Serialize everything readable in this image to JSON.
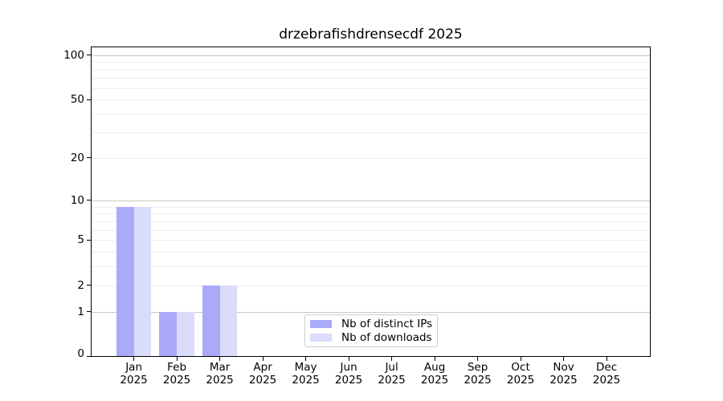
{
  "chart_data": {
    "type": "bar",
    "title": "drzebrafishdrensecdf 2025",
    "categories": [
      "Jan",
      "Feb",
      "Mar",
      "Apr",
      "May",
      "Jun",
      "Jul",
      "Aug",
      "Sep",
      "Oct",
      "Nov",
      "Dec"
    ],
    "year_label": "2025",
    "series": [
      {
        "name": "Nb of distinct IPs",
        "color": "#aaaaf8",
        "values": [
          9,
          1,
          2,
          0,
          0,
          0,
          0,
          0,
          0,
          0,
          0,
          0
        ]
      },
      {
        "name": "Nb of downloads",
        "color": "#dbdbfa",
        "values": [
          9,
          1,
          2,
          0,
          0,
          0,
          0,
          0,
          0,
          0,
          0,
          0
        ]
      }
    ],
    "y_ticks": [
      0,
      1,
      2,
      5,
      10,
      20,
      50,
      100
    ],
    "y_scale": "log10(1+v)",
    "ylim": [
      0,
      120
    ],
    "xlabel": "",
    "ylabel": "",
    "grid": {
      "major_values": [
        1,
        10,
        100
      ],
      "minor_values": [
        2,
        3,
        4,
        5,
        6,
        7,
        8,
        9,
        20,
        30,
        40,
        50,
        60,
        70,
        80,
        90
      ],
      "major_color": "#c6c6c6",
      "minor_color": "#ededed"
    },
    "legend_position": "lower center"
  },
  "styles": {
    "background": "#ffffff",
    "spine_color": "#000000",
    "text_color": "#000000",
    "legend_border_color": "#cccccc"
  }
}
